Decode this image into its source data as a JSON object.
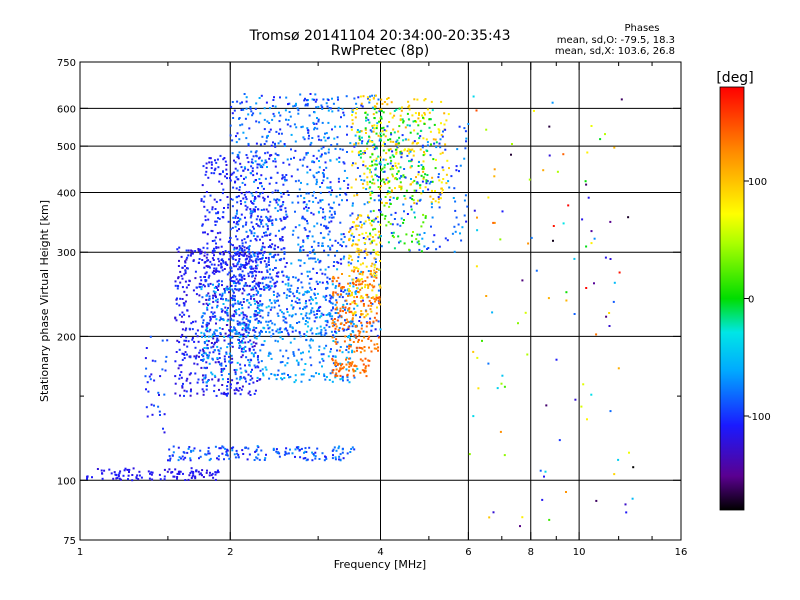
{
  "chart_data": {
    "type": "scatter",
    "title": "Tromsø 20141104 20:34:00-20:35:43",
    "subtitle": "RwPretec (8p)",
    "xlabel": "Frequency [MHz]",
    "ylabel": "Stationary phase Virtual Height [km]",
    "x_scale": "log",
    "y_scale": "log",
    "xlim": [
      1,
      16
    ],
    "ylim": [
      75,
      750
    ],
    "x_ticks": [
      1,
      2,
      4,
      6,
      8,
      10,
      16
    ],
    "x_tick_labels": [
      "1",
      "2",
      "4",
      "6",
      "8",
      "10",
      "16"
    ],
    "x_minor_ticks": [
      1.5,
      3,
      5,
      7,
      9,
      12,
      14
    ],
    "y_ticks": [
      75,
      100,
      200,
      300,
      400,
      500,
      600,
      750
    ],
    "y_tick_labels": [
      "75",
      "100",
      "200",
      "300",
      "400",
      "500",
      "600",
      "750"
    ],
    "y_minor_ticks": [
      150
    ],
    "grid": true,
    "legend": {
      "title": "Phases",
      "lines": [
        "mean, sd,O: -79.5, 18.3",
        "mean, sd,X: 103.6, 26.8"
      ]
    },
    "colorbar": {
      "label": "[deg]",
      "range": [
        -180,
        180
      ],
      "ticks": [
        100,
        0,
        -100
      ],
      "tick_labels": [
        "100",
        "0",
        "-100"
      ]
    },
    "clusters": [
      {
        "x": [
          1.03,
          1.9
        ],
        "y": [
          100,
          106
        ],
        "phase": [
          -125,
          -105
        ],
        "n": 110
      },
      {
        "x": [
          1.5,
          3.55
        ],
        "y": [
          110,
          118
        ],
        "phase": [
          -115,
          -65
        ],
        "n": 160
      },
      {
        "x": [
          1.35,
          1.5
        ],
        "y": [
          125,
          200
        ],
        "phase": [
          -120,
          -80
        ],
        "n": 35
      },
      {
        "x": [
          1.55,
          2.3
        ],
        "y": [
          150,
          310
        ],
        "phase": [
          -130,
          -95
        ],
        "n": 600
      },
      {
        "x": [
          1.75,
          2.6
        ],
        "y": [
          250,
          480
        ],
        "phase": [
          -120,
          -95
        ],
        "n": 420
      },
      {
        "x": [
          1.75,
          3.6
        ],
        "y": [
          160,
          260
        ],
        "phase": [
          -95,
          -45
        ],
        "n": 520
      },
      {
        "x": [
          2.0,
          3.2
        ],
        "y": [
          200,
          650
        ],
        "phase": [
          -110,
          -60
        ],
        "n": 600
      },
      {
        "x": [
          2.8,
          4.0
        ],
        "y": [
          200,
          640
        ],
        "phase": [
          -115,
          -55
        ],
        "n": 380
      },
      {
        "x": [
          3.45,
          4.0
        ],
        "y": [
          220,
          360
        ],
        "phase": [
          70,
          110
        ],
        "n": 150
      },
      {
        "x": [
          3.2,
          4.0
        ],
        "y": [
          185,
          275
        ],
        "phase": [
          120,
          150
        ],
        "n": 170
      },
      {
        "x": [
          3.2,
          3.8
        ],
        "y": [
          165,
          180
        ],
        "phase": [
          125,
          150
        ],
        "n": 60
      },
      {
        "x": [
          3.5,
          5.5
        ],
        "y": [
          380,
          640
        ],
        "phase": [
          70,
          110
        ],
        "n": 260
      },
      {
        "x": [
          3.6,
          5.2
        ],
        "y": [
          420,
          600
        ],
        "phase": [
          -25,
          20
        ],
        "n": 120
      },
      {
        "x": [
          4.0,
          6.0
        ],
        "y": [
          300,
          560
        ],
        "phase": [
          -110,
          -60
        ],
        "n": 140
      },
      {
        "x": [
          3.8,
          5.0
        ],
        "y": [
          300,
          460
        ],
        "phase": [
          -15,
          45
        ],
        "n": 80
      },
      {
        "x": [
          6.0,
          13.0
        ],
        "y": [
          80,
          680
        ],
        "phase": [
          -180,
          180
        ],
        "n": 110
      }
    ]
  }
}
